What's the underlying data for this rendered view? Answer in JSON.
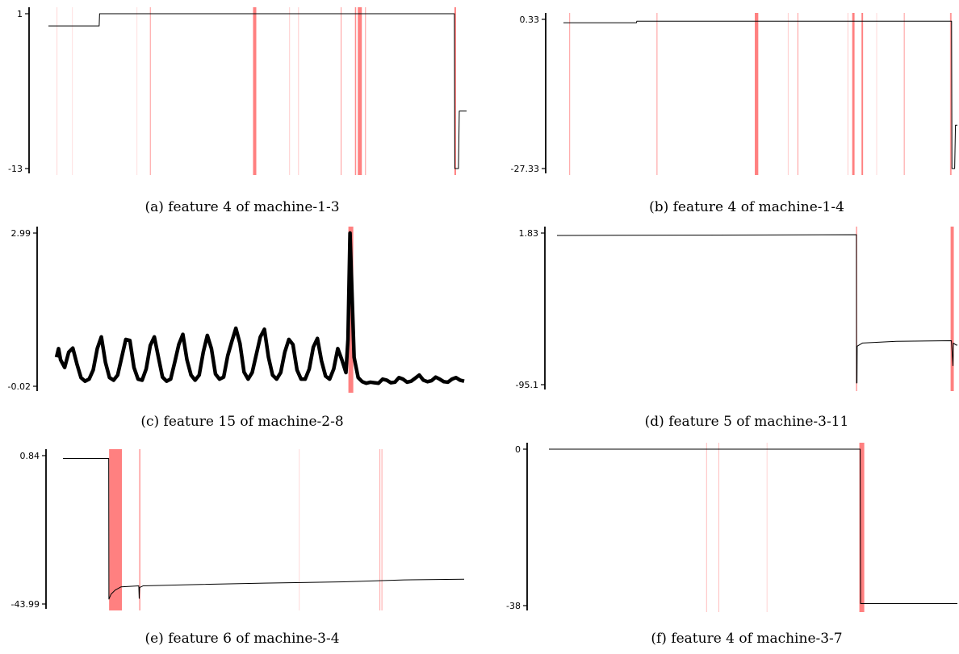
{
  "chart_data": [
    {
      "type": "line",
      "caption": "(a) feature 4 of machine-1-3",
      "yticks": [
        "1",
        "-13"
      ],
      "ylim": [
        -13,
        1
      ],
      "series_color": "#000000",
      "anomaly_color": "#ff8080",
      "x": [
        0,
        12.5,
        12.6,
        100.0,
        100.1,
        101.0,
        101.2,
        103.0
      ],
      "y": [
        -0.1,
        -0.1,
        1.0,
        1.0,
        -13.0,
        -13.0,
        -7.8,
        -7.8
      ],
      "anomalies": [
        {
          "start": 2.0,
          "end": 2.1,
          "opacity": 0.3
        },
        {
          "start": 5.8,
          "end": 5.9,
          "opacity": 0.25
        },
        {
          "start": 21.7,
          "end": 21.8,
          "opacity": 0.25
        },
        {
          "start": 25.0,
          "end": 25.2,
          "opacity": 0.8
        },
        {
          "start": 50.4,
          "end": 51.2,
          "opacity": 1
        },
        {
          "start": 59.3,
          "end": 59.4,
          "opacity": 0.4
        },
        {
          "start": 61.5,
          "end": 61.6,
          "opacity": 0.4
        },
        {
          "start": 72.0,
          "end": 72.2,
          "opacity": 0.8
        },
        {
          "start": 75.5,
          "end": 75.8,
          "opacity": 0.9
        },
        {
          "start": 76.2,
          "end": 77.2,
          "opacity": 1
        },
        {
          "start": 78.0,
          "end": 78.2,
          "opacity": 0.8
        },
        {
          "start": 100.0,
          "end": 100.4,
          "opacity": 1
        }
      ]
    },
    {
      "type": "line",
      "caption": "(b) feature 4 of machine-1-4",
      "yticks": [
        "0.33",
        "-27.33"
      ],
      "ylim": [
        -27.33,
        0.33
      ],
      "series_color": "#000000",
      "anomaly_color": "#ff8080",
      "x": [
        0,
        18.8,
        18.9,
        100.0,
        100.1,
        100.8,
        101.0,
        101.5
      ],
      "y": [
        -0.3,
        -0.3,
        0.0,
        0.0,
        -27.33,
        -27.33,
        -19.3,
        -19.3
      ],
      "anomalies": [
        {
          "start": 1.5,
          "end": 1.7,
          "opacity": 0.8
        },
        {
          "start": 24.0,
          "end": 24.2,
          "opacity": 0.8
        },
        {
          "start": 49.3,
          "end": 50.2,
          "opacity": 1
        },
        {
          "start": 57.8,
          "end": 57.9,
          "opacity": 0.4
        },
        {
          "start": 60.3,
          "end": 60.5,
          "opacity": 0.8
        },
        {
          "start": 73.2,
          "end": 73.3,
          "opacity": 0.4
        },
        {
          "start": 74.4,
          "end": 75.0,
          "opacity": 1
        },
        {
          "start": 76.8,
          "end": 77.2,
          "opacity": 1
        },
        {
          "start": 80.6,
          "end": 80.7,
          "opacity": 0.3
        },
        {
          "start": 87.7,
          "end": 87.9,
          "opacity": 0.8
        },
        {
          "start": 99.6,
          "end": 100.0,
          "opacity": 0.8
        }
      ]
    },
    {
      "type": "line",
      "caption": "(c) feature 15 of machine-2-8",
      "yticks": [
        "2.99",
        "-0.02"
      ],
      "ylim": [
        -0.02,
        2.99
      ],
      "series_color": "#000000",
      "anomaly_color": "#ff8080",
      "x": [
        0,
        0.5,
        1,
        2,
        3,
        4,
        5,
        6,
        7,
        8,
        9,
        10,
        11,
        12,
        13,
        14,
        15,
        16,
        17,
        18,
        19,
        20,
        21,
        22,
        23,
        24,
        25,
        26,
        27,
        28,
        29,
        30,
        31,
        32,
        33,
        34,
        35,
        36,
        37,
        38,
        39,
        40,
        41,
        42,
        43,
        44,
        45,
        46,
        47,
        48,
        49,
        50,
        51,
        52,
        53,
        54,
        55,
        56,
        57,
        58,
        59,
        60,
        61,
        62,
        63,
        64,
        65,
        66,
        67,
        68,
        69,
        70,
        71,
        71.5,
        72,
        73,
        74,
        75,
        76,
        77,
        78,
        79,
        80,
        81,
        82,
        83,
        84,
        85,
        86,
        87,
        88,
        89,
        90,
        91,
        92,
        93,
        94,
        95,
        96,
        97,
        98,
        99,
        100
      ],
      "y": [
        0.55,
        0.72,
        0.5,
        0.35,
        0.65,
        0.73,
        0.42,
        0.15,
        0.08,
        0.12,
        0.3,
        0.72,
        0.95,
        0.45,
        0.15,
        0.1,
        0.2,
        0.55,
        0.9,
        0.88,
        0.35,
        0.12,
        0.1,
        0.32,
        0.78,
        0.95,
        0.55,
        0.16,
        0.08,
        0.12,
        0.45,
        0.8,
        1.0,
        0.5,
        0.2,
        0.1,
        0.2,
        0.65,
        0.98,
        0.72,
        0.22,
        0.12,
        0.16,
        0.58,
        0.86,
        1.12,
        0.82,
        0.26,
        0.12,
        0.25,
        0.6,
        0.95,
        1.1,
        0.55,
        0.2,
        0.12,
        0.25,
        0.65,
        0.9,
        0.8,
        0.3,
        0.12,
        0.12,
        0.32,
        0.75,
        0.92,
        0.48,
        0.18,
        0.12,
        0.32,
        0.72,
        0.5,
        0.25,
        0.9,
        2.99,
        0.55,
        0.15,
        0.07,
        0.04,
        0.06,
        0.05,
        0.04,
        0.12,
        0.1,
        0.05,
        0.06,
        0.15,
        0.12,
        0.06,
        0.08,
        0.14,
        0.2,
        0.1,
        0.07,
        0.09,
        0.16,
        0.12,
        0.07,
        0.06,
        0.12,
        0.15,
        0.1,
        0.08
      ],
      "anomalies": [
        {
          "start": 71.6,
          "end": 72.8,
          "opacity": 1
        }
      ]
    },
    {
      "type": "line",
      "caption": "(d) feature 5 of machine-3-11",
      "yticks": [
        "1.83",
        "-95.1"
      ],
      "ylim": [
        -95.1,
        1.83
      ],
      "series_color": "#000000",
      "anomaly_color": "#ff8080",
      "x": [
        0,
        50,
        75.0,
        75.05,
        75.15,
        75.2,
        76.5,
        85,
        98.8,
        99.2,
        99.3,
        100.0,
        100.3
      ],
      "y": [
        0.3,
        0.6,
        0.8,
        -94.0,
        -94.0,
        -70.5,
        -68.5,
        -67.4,
        -67.0,
        -83.0,
        -68.5,
        -69.8,
        -69.8
      ],
      "anomalies": [
        {
          "start": 74.9,
          "end": 75.2,
          "opacity": 0.8
        },
        {
          "start": 98.6,
          "end": 99.4,
          "opacity": 1
        }
      ]
    },
    {
      "type": "line",
      "caption": "(e) feature 6 of machine-3-4",
      "yticks": [
        "0.84",
        "-43.99"
      ],
      "ylim": [
        -43.99,
        0.84
      ],
      "series_color": "#000000",
      "anomaly_color": "#ff8080",
      "x": [
        0,
        11.4,
        11.45,
        12.0,
        13.0,
        14.5,
        18.9,
        19.0,
        19.1,
        20.0,
        30.0,
        50.0,
        70.0,
        85.0,
        100.0
      ],
      "y": [
        0.0,
        0.0,
        -42.5,
        -41.0,
        -39.8,
        -38.8,
        -38.5,
        -42.3,
        -39.0,
        -38.5,
        -38.2,
        -37.7,
        -37.3,
        -36.7,
        -36.5
      ],
      "anomalies": [
        {
          "start": 11.5,
          "end": 14.7,
          "opacity": 1
        },
        {
          "start": 19.0,
          "end": 19.3,
          "opacity": 0.8
        },
        {
          "start": 58.8,
          "end": 58.9,
          "opacity": 0.3
        },
        {
          "start": 78.9,
          "end": 79.0,
          "opacity": 0.7
        },
        {
          "start": 79.4,
          "end": 79.5,
          "opacity": 0.7
        }
      ]
    },
    {
      "type": "line",
      "caption": "(f) feature 4 of machine-3-7",
      "yticks": [
        "0",
        "-38"
      ],
      "ylim": [
        -38,
        0
      ],
      "series_color": "#000000",
      "anomaly_color": "#ff8080",
      "x": [
        0,
        76.2,
        76.3,
        100.0
      ],
      "y": [
        0,
        0,
        -37.5,
        -37.5
      ],
      "anomalies": [
        {
          "start": 38.5,
          "end": 38.6,
          "opacity": 0.5
        },
        {
          "start": 41.5,
          "end": 41.6,
          "opacity": 0.5
        },
        {
          "start": 53.3,
          "end": 53.4,
          "opacity": 0.35
        },
        {
          "start": 76.0,
          "end": 77.2,
          "opacity": 1
        }
      ]
    }
  ]
}
